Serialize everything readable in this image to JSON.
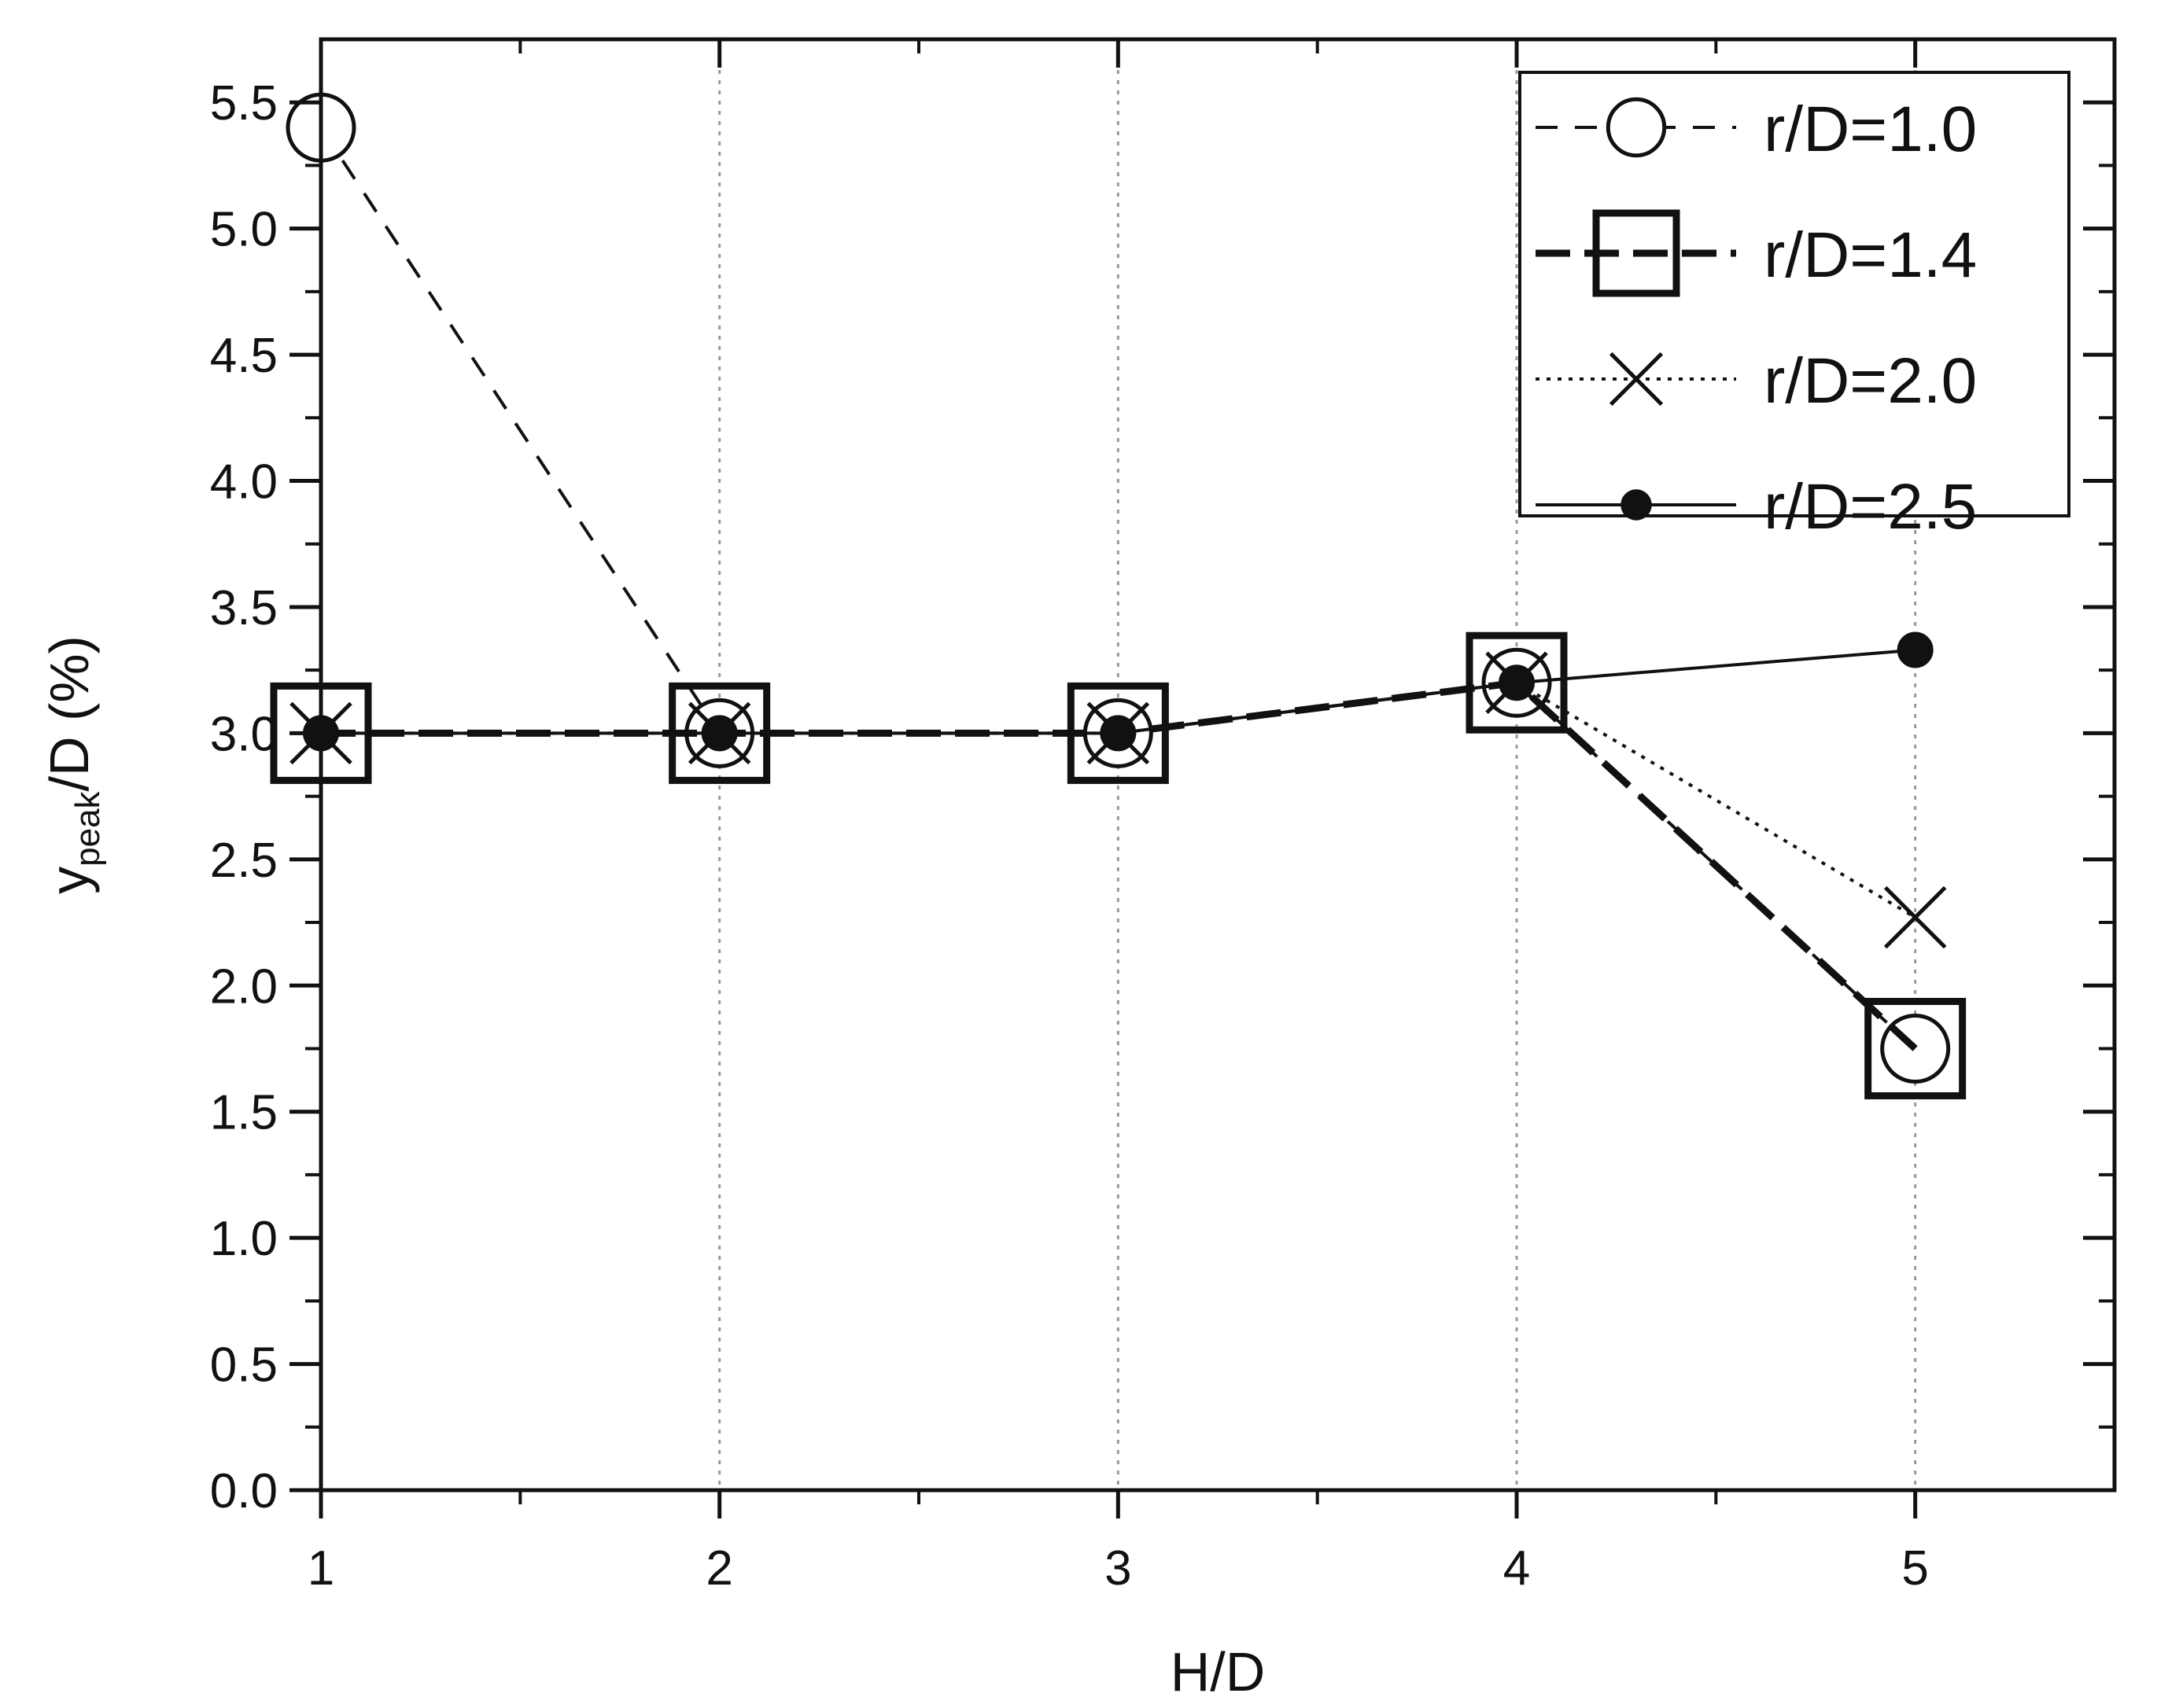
{
  "chart_data": {
    "type": "line",
    "xlabel": "H/D",
    "ylabel": {
      "main": "y",
      "subscript": "peak",
      "rest": "/D (%)"
    },
    "xlim": [
      1,
      5.5
    ],
    "ylim": [
      0,
      5.75
    ],
    "xticks": [
      1,
      2,
      3,
      4,
      5
    ],
    "xtick_labels": [
      "1",
      "2",
      "3",
      "4",
      "5"
    ],
    "yticks": [
      0,
      0.5,
      1.0,
      1.5,
      2.0,
      2.5,
      3.0,
      3.5,
      4.0,
      4.5,
      5.0,
      5.5
    ],
    "ytick_labels": [
      "0.0",
      "0.5",
      "1.0",
      "1.5",
      "2.0",
      "2.5",
      "3.0",
      "3.5",
      "4.0",
      "4.5",
      "5.0",
      "5.5"
    ],
    "grid": "vertical dotted at major x ticks",
    "legend_position": "top-right",
    "x": [
      1,
      2,
      3,
      4,
      5
    ],
    "series": [
      {
        "name": "r/D=1.0",
        "marker": "circle-open",
        "line": "dashed",
        "values": [
          5.4,
          3.0,
          3.0,
          3.2,
          1.75
        ]
      },
      {
        "name": "r/D=1.4",
        "marker": "square-open",
        "line": "bold-dashed",
        "values": [
          3.0,
          3.0,
          3.0,
          3.2,
          1.75
        ]
      },
      {
        "name": "r/D=2.0",
        "marker": "cross",
        "line": "dotted",
        "values": [
          3.0,
          3.0,
          3.0,
          3.2,
          2.27
        ]
      },
      {
        "name": "r/D=2.5",
        "marker": "circle-filled",
        "line": "solid",
        "values": [
          3.0,
          3.0,
          3.0,
          3.2,
          3.33
        ]
      }
    ],
    "colors": {
      "ink": "#111111",
      "grid": "#9a9a9a",
      "background": "#ffffff"
    }
  }
}
